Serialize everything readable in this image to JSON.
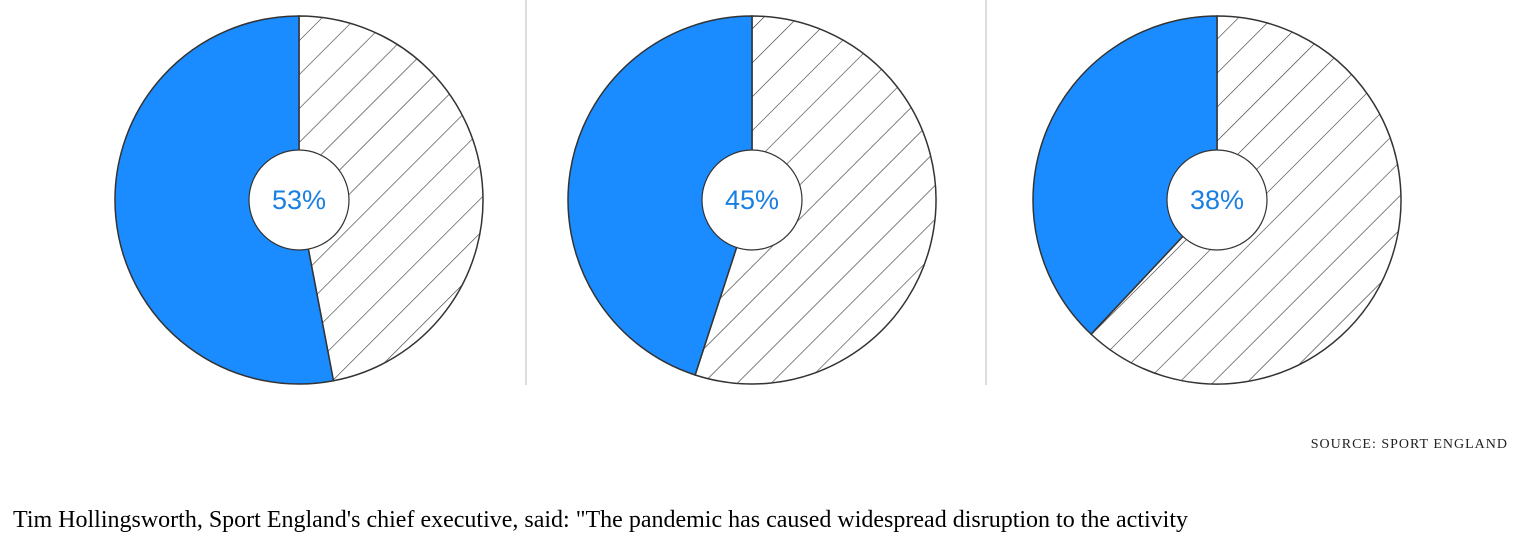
{
  "chart_data": [
    {
      "type": "pie",
      "values": [
        53,
        47
      ],
      "label": "53%"
    },
    {
      "type": "pie",
      "values": [
        45,
        55
      ],
      "label": "45%"
    },
    {
      "type": "pie",
      "values": [
        38,
        62
      ],
      "label": "38%"
    }
  ],
  "colors": {
    "highlight": "#1a8cff",
    "label": "#1a7fe0",
    "stroke": "#333333",
    "divider": "#dddddd"
  },
  "source": "SOURCE: SPORT ENGLAND",
  "body_text": "Tim Hollingsworth, Sport England's chief executive, said: \"The pandemic has caused widespread disruption to the activity"
}
